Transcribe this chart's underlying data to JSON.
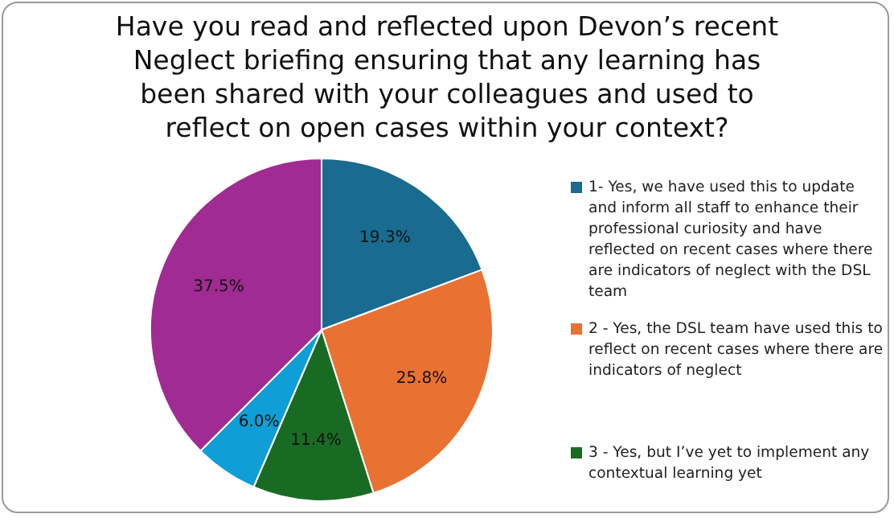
{
  "chart_data": {
    "type": "pie",
    "title": "Have you read and reflected upon Devon’s recent Neglect briefing ensuring that any learning has been shared with your colleagues and used to reflect on open cases within your context?",
    "categories": [
      "1- Yes, we have used this to update and inform all staff to enhance their professional curiosity and have reflected on recent cases where there are indicators of neglect with the DSL team",
      "2 - Yes, the DSL team have used this to reflect on recent cases where there are indicators of neglect",
      "3 - Yes, but I’ve yet to implement any contextual learning yet",
      null,
      null
    ],
    "values": [
      19.3,
      25.8,
      11.4,
      6.0,
      37.5
    ],
    "value_labels": [
      "19.3%",
      "25.8%",
      "11.4%",
      "6.0%",
      "37.5%"
    ],
    "colors": [
      "#196b8f",
      "#e97132",
      "#196b24",
      "#0f9ed5",
      "#a02b93"
    ],
    "legend": "right"
  }
}
